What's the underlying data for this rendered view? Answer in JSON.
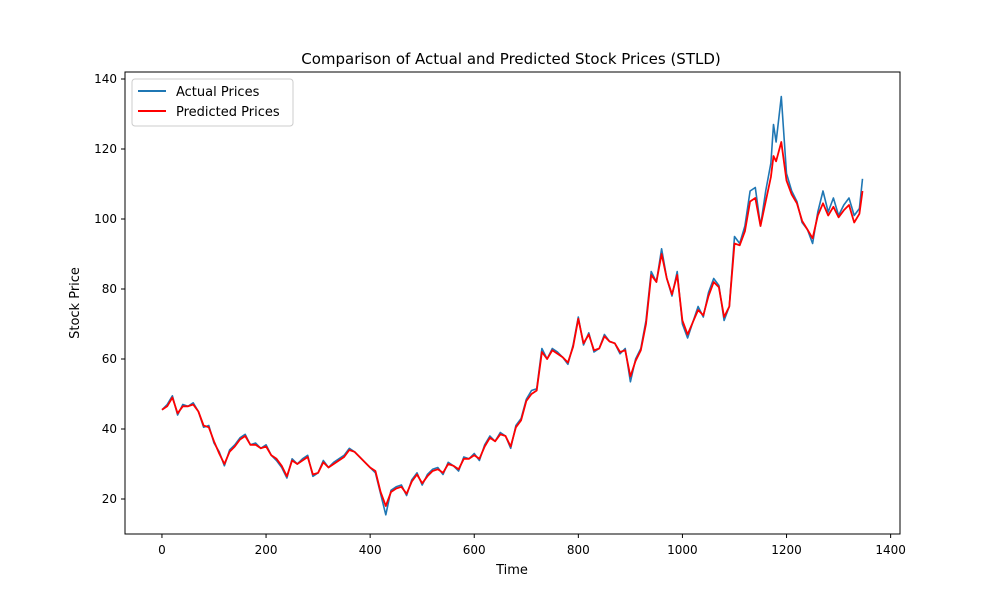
{
  "chart_data": {
    "type": "line",
    "title": "Comparison of Actual and Predicted Stock Prices (STLD)",
    "xlabel": "Time",
    "ylabel": "Stock Price",
    "xlim": [
      -71,
      1418
    ],
    "ylim": [
      10,
      142
    ],
    "xticks": [
      0,
      200,
      400,
      600,
      800,
      1000,
      1200,
      1400
    ],
    "yticks": [
      20,
      40,
      60,
      80,
      100,
      120,
      140
    ],
    "grid": false,
    "legend": "top-left",
    "series": [
      {
        "name": "Actual Prices",
        "color": "#1f77b4",
        "x": [
          0,
          10,
          20,
          30,
          40,
          50,
          60,
          70,
          80,
          90,
          100,
          110,
          120,
          130,
          140,
          150,
          160,
          170,
          180,
          190,
          200,
          210,
          220,
          230,
          240,
          250,
          260,
          270,
          280,
          290,
          300,
          310,
          320,
          330,
          340,
          350,
          360,
          370,
          380,
          390,
          400,
          410,
          420,
          430,
          440,
          450,
          460,
          470,
          480,
          490,
          500,
          510,
          520,
          530,
          540,
          550,
          560,
          570,
          580,
          590,
          600,
          610,
          620,
          630,
          640,
          650,
          660,
          670,
          680,
          690,
          700,
          710,
          720,
          730,
          740,
          750,
          760,
          770,
          780,
          790,
          800,
          810,
          820,
          830,
          840,
          850,
          860,
          870,
          880,
          890,
          900,
          910,
          920,
          930,
          940,
          950,
          960,
          970,
          980,
          990,
          1000,
          1010,
          1020,
          1030,
          1040,
          1050,
          1060,
          1070,
          1080,
          1090,
          1100,
          1110,
          1120,
          1130,
          1140,
          1150,
          1160,
          1170,
          1175,
          1180,
          1190,
          1200,
          1210,
          1220,
          1230,
          1240,
          1250,
          1260,
          1270,
          1280,
          1290,
          1300,
          1310,
          1320,
          1330,
          1340,
          1346
        ],
        "y": [
          45.5,
          47,
          49.5,
          44,
          47,
          46.5,
          47.5,
          45,
          40.5,
          41,
          36,
          33.5,
          29.5,
          34,
          35.5,
          37.5,
          38.5,
          35.5,
          36,
          34.5,
          35.5,
          32.5,
          31,
          29,
          26,
          31.5,
          30,
          31.5,
          32.5,
          26.5,
          27.5,
          31,
          29,
          30.5,
          31.5,
          32.5,
          34.5,
          33.5,
          32,
          30.5,
          29,
          27.5,
          21.5,
          15.5,
          22.5,
          23.5,
          24,
          21,
          25.5,
          27.5,
          24,
          27,
          28.5,
          29,
          27,
          30.5,
          29.5,
          28,
          32,
          31.5,
          33,
          31,
          35.5,
          38,
          36.5,
          39,
          38,
          34.5,
          41,
          43,
          48.5,
          51,
          51.5,
          63,
          60,
          63,
          62,
          60.5,
          58.5,
          64,
          72,
          64,
          67.5,
          62,
          63,
          67,
          65,
          64.5,
          61.5,
          63,
          53.5,
          60,
          63,
          71,
          85,
          82,
          91.5,
          83,
          78,
          85,
          70,
          66,
          70.5,
          75,
          72,
          79,
          83,
          81,
          71,
          75,
          95,
          93,
          98,
          108,
          109,
          98,
          108,
          116,
          127,
          122,
          135,
          113,
          108,
          105,
          99,
          97,
          93,
          102,
          108,
          102,
          106,
          101,
          104,
          106,
          101,
          103,
          111.5
        ]
      },
      {
        "name": "Predicted Prices",
        "color": "#ff0000",
        "x": [
          0,
          10,
          20,
          30,
          40,
          50,
          60,
          70,
          80,
          90,
          100,
          110,
          120,
          130,
          140,
          150,
          160,
          170,
          180,
          190,
          200,
          210,
          220,
          230,
          240,
          250,
          260,
          270,
          280,
          290,
          300,
          310,
          320,
          330,
          340,
          350,
          360,
          370,
          380,
          390,
          400,
          410,
          420,
          430,
          440,
          450,
          460,
          470,
          480,
          490,
          500,
          510,
          520,
          530,
          540,
          550,
          560,
          570,
          580,
          590,
          600,
          610,
          620,
          630,
          640,
          650,
          660,
          670,
          680,
          690,
          700,
          710,
          720,
          730,
          740,
          750,
          760,
          770,
          780,
          790,
          800,
          810,
          820,
          830,
          840,
          850,
          860,
          870,
          880,
          890,
          900,
          910,
          920,
          930,
          940,
          950,
          960,
          970,
          980,
          990,
          1000,
          1010,
          1020,
          1030,
          1040,
          1050,
          1060,
          1070,
          1080,
          1090,
          1100,
          1110,
          1120,
          1130,
          1140,
          1150,
          1160,
          1170,
          1175,
          1180,
          1190,
          1200,
          1210,
          1220,
          1230,
          1240,
          1250,
          1260,
          1270,
          1280,
          1290,
          1300,
          1310,
          1320,
          1330,
          1340,
          1346
        ],
        "y": [
          45.5,
          46.5,
          49,
          44.5,
          46.5,
          46.5,
          47,
          45,
          41,
          40.5,
          36.5,
          33,
          30,
          33.5,
          35,
          37,
          38,
          35.5,
          35.5,
          34.5,
          35,
          32.5,
          31.5,
          29.5,
          26.5,
          31,
          30,
          31,
          32,
          27,
          27.5,
          30.5,
          29,
          30,
          31,
          32,
          34,
          33.5,
          32,
          30.5,
          29,
          28,
          22,
          18,
          22,
          23,
          23.5,
          21.5,
          25,
          27,
          24.5,
          26.5,
          28,
          28.5,
          27.5,
          30,
          29.5,
          28.5,
          31.5,
          31.5,
          32.5,
          31.5,
          35,
          37.5,
          36.5,
          38.5,
          38,
          35,
          40.5,
          42.5,
          48,
          50,
          51,
          62,
          60,
          62.5,
          61.5,
          60.5,
          59,
          63.5,
          71.5,
          64.5,
          67,
          62.5,
          63,
          66.5,
          65,
          64.5,
          62,
          62.5,
          55,
          59.5,
          62.5,
          70,
          84,
          82,
          90,
          83,
          78.5,
          84,
          71,
          67,
          70.5,
          74,
          72.5,
          78,
          82,
          80.5,
          72,
          75,
          93,
          92.5,
          96.5,
          105,
          106,
          98,
          105,
          112,
          118,
          116.5,
          122,
          111,
          107,
          104.5,
          99.5,
          97,
          94.5,
          101,
          104.5,
          101,
          103.5,
          100.5,
          102.5,
          104,
          99,
          101.5,
          108
        ]
      }
    ]
  }
}
